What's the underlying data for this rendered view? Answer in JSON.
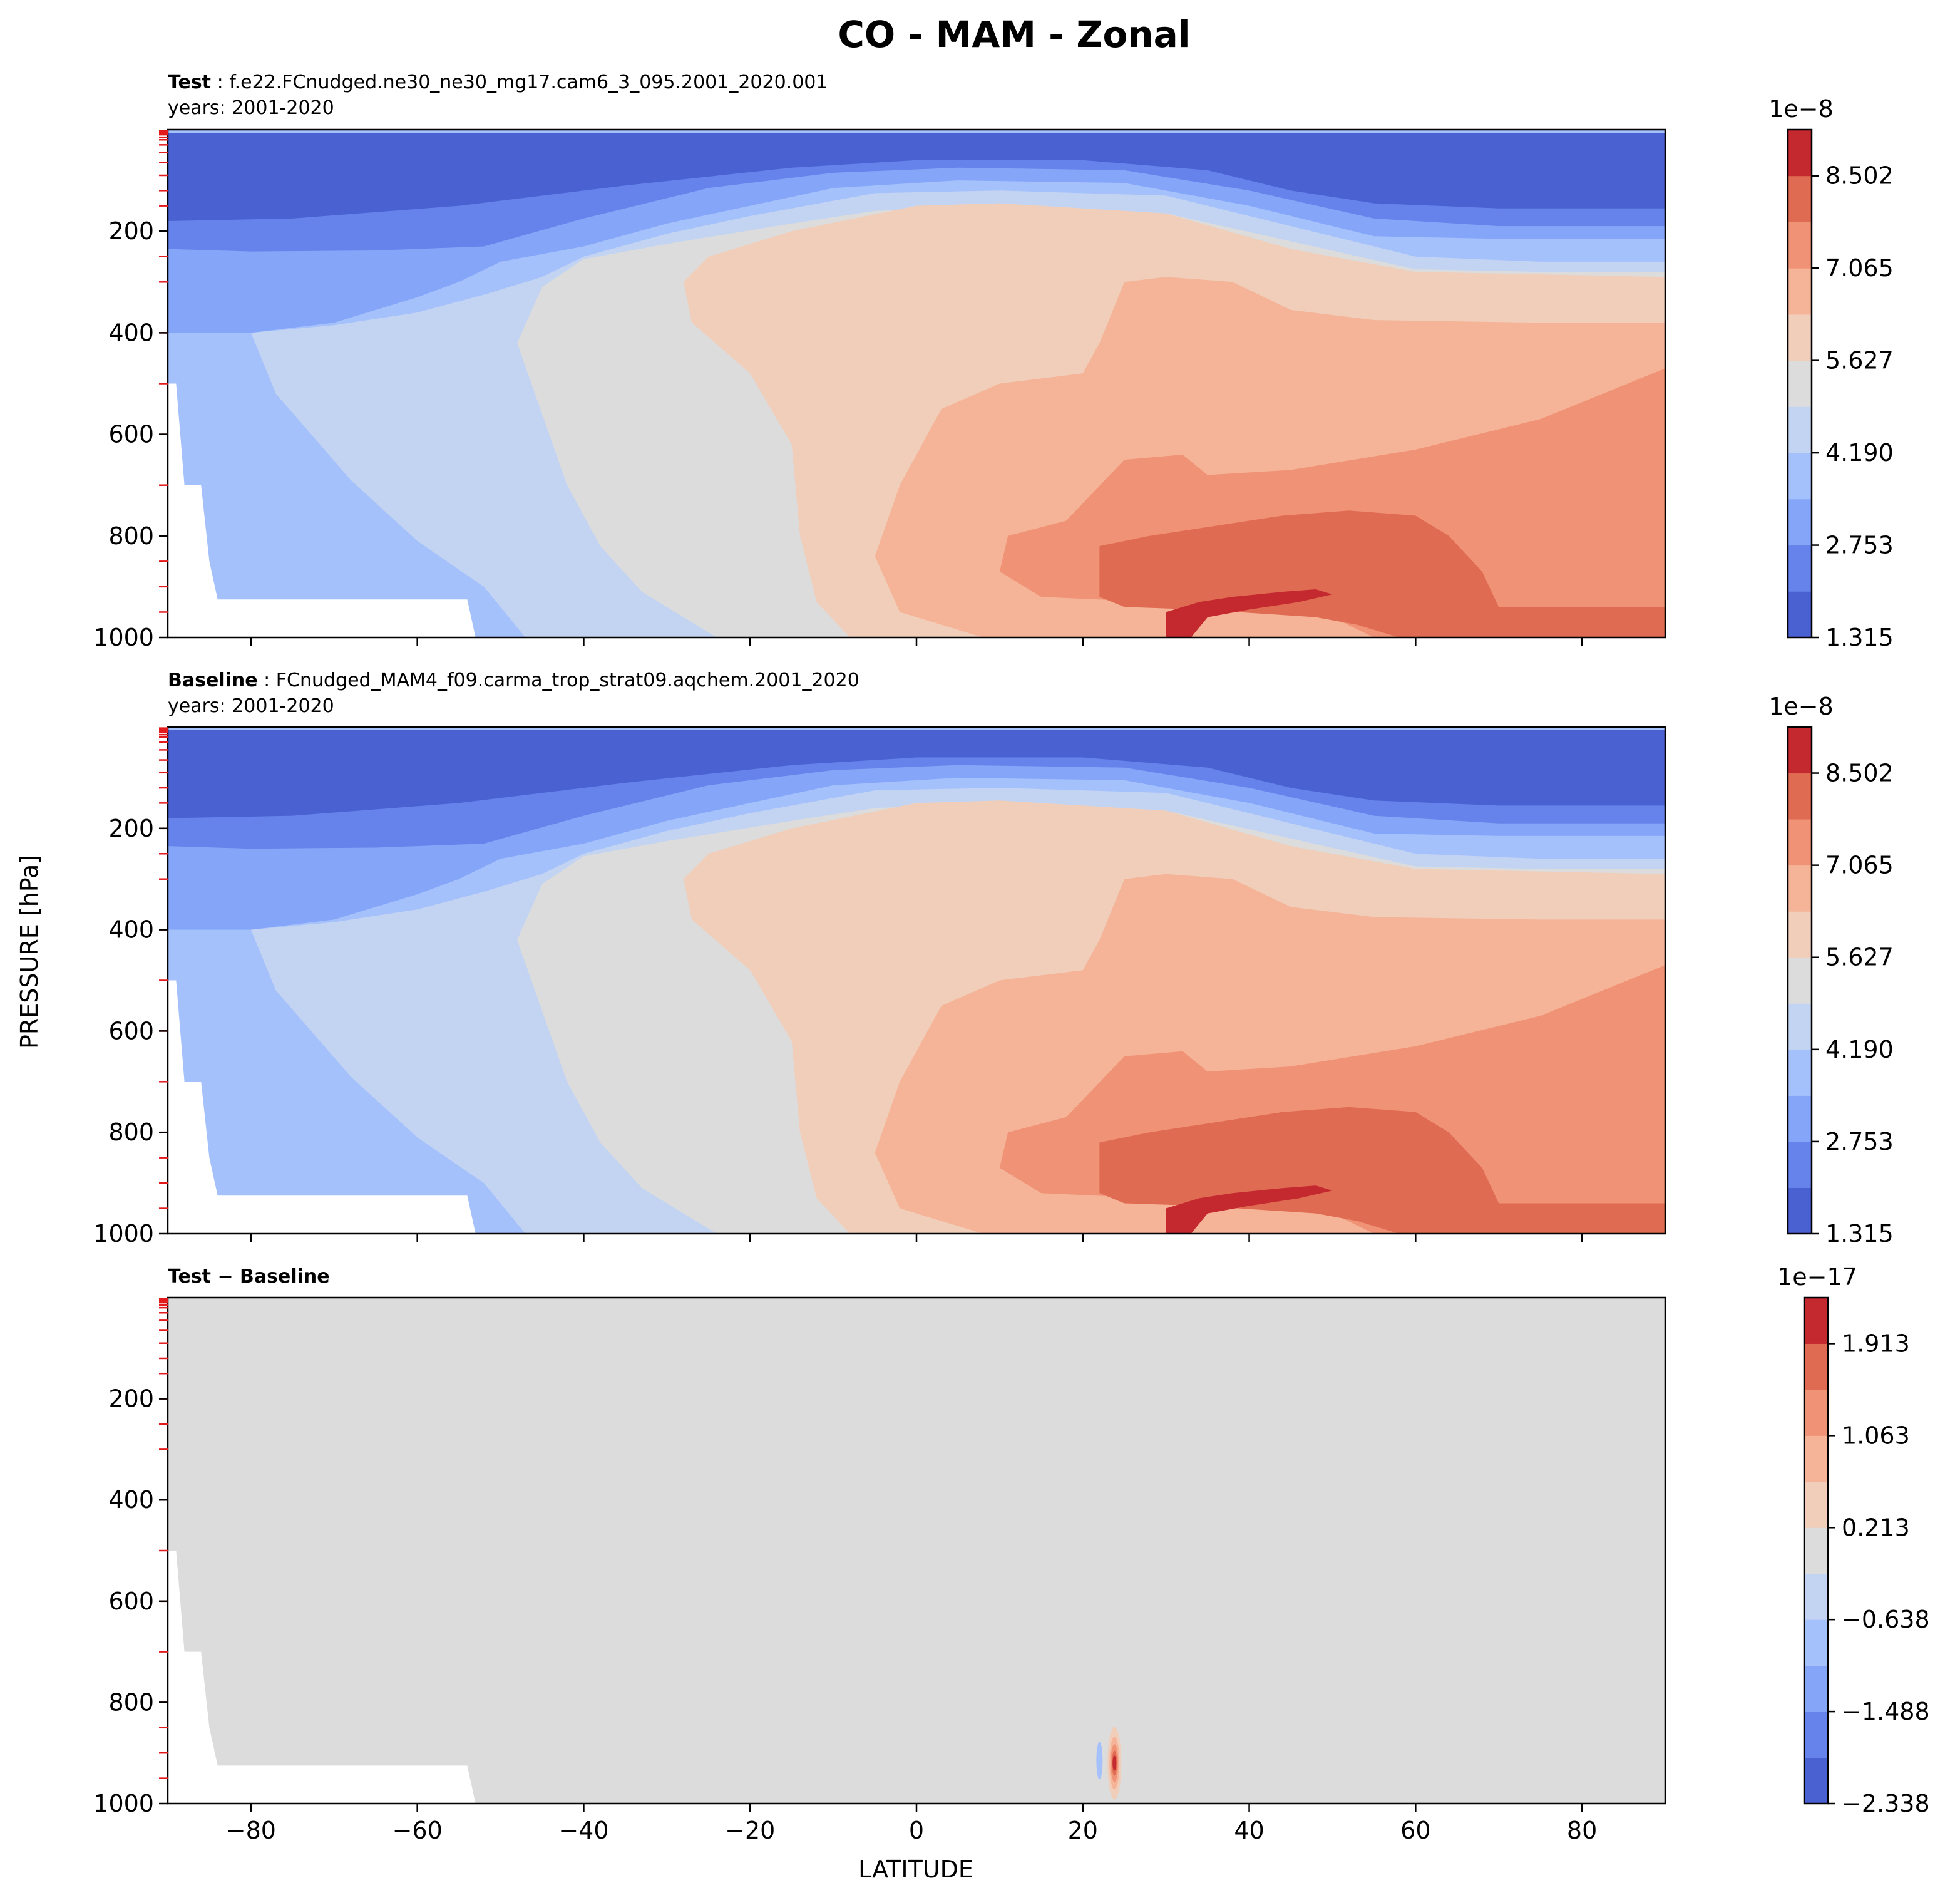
{
  "chart_data": {
    "type": "contour",
    "suptitle": "CO - MAM - Zonal",
    "xlabel": "LATITUDE",
    "ylabel": "PRESSURE [hPa]",
    "xlim": [
      -90,
      90
    ],
    "ylim": [
      1000,
      0
    ],
    "xticks": [
      -80,
      -60,
      -40,
      -20,
      0,
      20,
      40,
      60,
      80
    ],
    "xtick_labels": [
      "−80",
      "−60",
      "−40",
      "−20",
      "0",
      "20",
      "40",
      "60",
      "80"
    ],
    "yticks": [
      200,
      400,
      600,
      800,
      1000
    ],
    "ytick_labels": [
      "200",
      "400",
      "600",
      "800",
      "1000"
    ],
    "model_level_marks_hPa": [
      2,
      4,
      6,
      8,
      10,
      15,
      20,
      30,
      45,
      65,
      90,
      120,
      150,
      200,
      250,
      300,
      400,
      500,
      600,
      700,
      800,
      850,
      900,
      950
    ],
    "panels": [
      {
        "id": "test",
        "label": "Test",
        "case": "f.e22.FCnudged.ne30_ne30_mg17.cam6_3_095.2001_2020.001",
        "years": "years: 2001-2020",
        "colorbar": {
          "offset": "1e−8",
          "tick_labels": [
            "1.315",
            "2.753",
            "4.190",
            "5.627",
            "7.065",
            "8.502"
          ],
          "levels": 11,
          "colors": [
            "#4a61d2",
            "#6583ea",
            "#85a6f8",
            "#a5c1fc",
            "#c3d4f2",
            "#dcdcdc",
            "#f0ceba",
            "#f5b497",
            "#f09276",
            "#e06b53",
            "#c3292f"
          ]
        }
      },
      {
        "id": "baseline",
        "label": "Baseline",
        "case": "FCnudged_MAM4_f09.carma_trop_strat09.aqchem.2001_2020",
        "years": "years: 2001-2020",
        "colorbar": {
          "offset": "1e−8",
          "tick_labels": [
            "1.315",
            "2.753",
            "4.190",
            "5.627",
            "7.065",
            "8.502"
          ],
          "levels": 11,
          "colors": [
            "#4a61d2",
            "#6583ea",
            "#85a6f8",
            "#a5c1fc",
            "#c3d4f2",
            "#dcdcdc",
            "#f0ceba",
            "#f5b497",
            "#f09276",
            "#e06b53",
            "#c3292f"
          ]
        }
      },
      {
        "id": "diff",
        "label": "Test − Baseline",
        "colorbar": {
          "offset": "1e−17",
          "tick_labels": [
            "−2.338",
            "−1.488",
            "−0.638",
            "0.213",
            "1.063",
            "1.913"
          ],
          "levels": 11,
          "colors": [
            "#4a61d2",
            "#6583ea",
            "#85a6f8",
            "#a5c1fc",
            "#c3d4f2",
            "#dcdcdc",
            "#f0ceba",
            "#f5b497",
            "#f09276",
            "#e06b53",
            "#c3292f"
          ]
        },
        "note": "difference is ~0 everywhere except a small dipole near 24°N, ~920 hPa"
      }
    ]
  }
}
